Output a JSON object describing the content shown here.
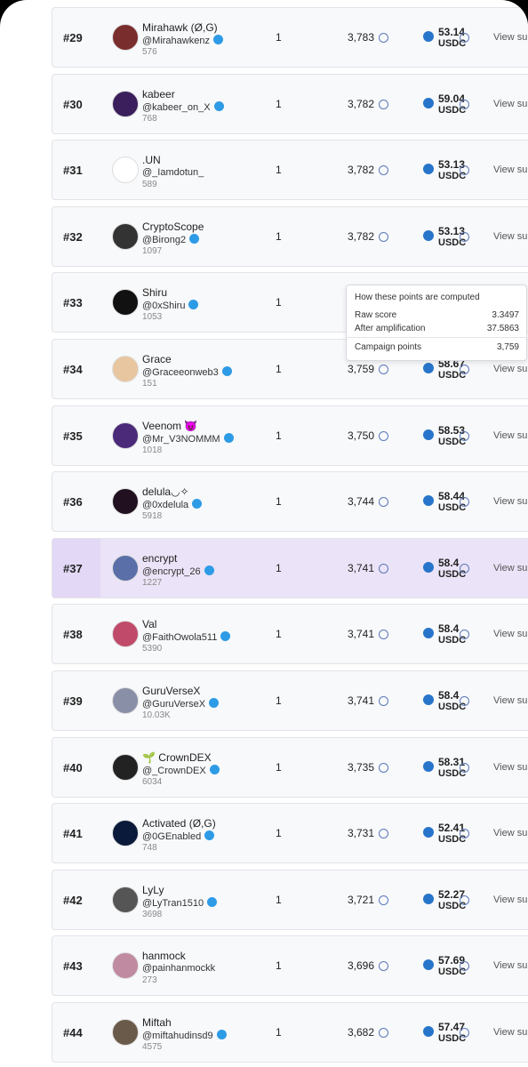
{
  "rows": [
    {
      "rank": "#29",
      "name": "Mirahawk (Ø,G)",
      "handle": "@Mirahawkenz",
      "verified": true,
      "followers": "576",
      "entries": "1",
      "points": "3,783",
      "reward": "53.14",
      "currency": "USDC",
      "action": "View sub"
    },
    {
      "rank": "#30",
      "name": "kabeer",
      "handle": "@kabeer_on_X",
      "verified": true,
      "followers": "768",
      "entries": "1",
      "points": "3,782",
      "reward": "59.04",
      "currency": "USDC",
      "action": "View sub"
    },
    {
      "rank": "#31",
      "name": ".UN",
      "handle": "@_Iamdotun_",
      "verified": false,
      "followers": "589",
      "entries": "1",
      "points": "3,782",
      "reward": "53.13",
      "currency": "USDC",
      "action": "View sub"
    },
    {
      "rank": "#32",
      "name": "CryptoScope",
      "handle": "@Birong2",
      "verified": true,
      "followers": "1097",
      "entries": "1",
      "points": "3,782",
      "reward": "53.13",
      "currency": "USDC",
      "action": "View sub"
    },
    {
      "rank": "#33",
      "name": "Shiru",
      "handle": "@0xShiru",
      "verified": true,
      "followers": "1053",
      "entries": "1"
    },
    {
      "rank": "#34",
      "name": "Grace",
      "handle": "@Graceeonweb3",
      "verified": true,
      "followers": "151",
      "entries": "1",
      "points": "3,759",
      "reward": "58.67",
      "currency": "USDC",
      "action": "View sub"
    },
    {
      "rank": "#35",
      "name": "Veenom 😈",
      "handle": "@Mr_V3NOMMM",
      "verified": true,
      "followers": "1018",
      "entries": "1",
      "points": "3,750",
      "reward": "58.53",
      "currency": "USDC",
      "action": "View sub"
    },
    {
      "rank": "#36",
      "name": "delula◡✧",
      "handle": "@0xdelula",
      "verified": true,
      "followers": "5918",
      "entries": "1",
      "points": "3,744",
      "reward": "58.44",
      "currency": "USDC",
      "action": "View sub"
    },
    {
      "rank": "#37",
      "name": "encrypt",
      "handle": "@encrypt_26",
      "verified": true,
      "followers": "1227",
      "entries": "1",
      "points": "3,741",
      "reward": "58.4",
      "currency": "USDC",
      "action": "View sub",
      "highlighted": true
    },
    {
      "rank": "#38",
      "name": "Val",
      "handle": "@FaithOwola511",
      "verified": true,
      "followers": "5390",
      "entries": "1",
      "points": "3,741",
      "reward": "58.4",
      "currency": "USDC",
      "action": "View sub"
    },
    {
      "rank": "#39",
      "name": "GuruVerseX",
      "handle": "@GuruVerseX",
      "verified": true,
      "followers": "10.03K",
      "entries": "1",
      "points": "3,741",
      "reward": "58.4",
      "currency": "USDC",
      "action": "View sub"
    },
    {
      "rank": "#40",
      "name": "🌱 CrownDEX",
      "handle": "@_CrownDEX",
      "verified": true,
      "followers": "6034",
      "entries": "1",
      "points": "3,735",
      "reward": "58.31",
      "currency": "USDC",
      "action": "View sub"
    },
    {
      "rank": "#41",
      "name": "Activated (Ø,G)",
      "handle": "@0GEnabled",
      "verified": true,
      "followers": "748",
      "entries": "1",
      "points": "3,731",
      "reward": "52.41",
      "currency": "USDC",
      "action": "View sub"
    },
    {
      "rank": "#42",
      "name": "LyLy",
      "handle": "@LyTran1510",
      "verified": true,
      "followers": "3698",
      "entries": "1",
      "points": "3,721",
      "reward": "52.27",
      "currency": "USDC",
      "action": "View sub"
    },
    {
      "rank": "#43",
      "name": "hanmock",
      "handle": "@painhanmockk",
      "verified": false,
      "followers": "273",
      "entries": "1",
      "points": "3,696",
      "reward": "57.69",
      "currency": "USDC",
      "action": "View sub"
    },
    {
      "rank": "#44",
      "name": "Miftah",
      "handle": "@miftahudinsd9",
      "verified": true,
      "followers": "4575",
      "entries": "1",
      "points": "3,682",
      "reward": "57.47",
      "currency": "USDC",
      "action": "View sub"
    }
  ],
  "tooltip": {
    "title": "How these points are computed",
    "rows": [
      {
        "label": "Raw score",
        "value": "3.3497"
      },
      {
        "label": "After amplification",
        "value": "37.5863"
      },
      {
        "label": "Campaign points",
        "value": "3,759"
      }
    ]
  }
}
